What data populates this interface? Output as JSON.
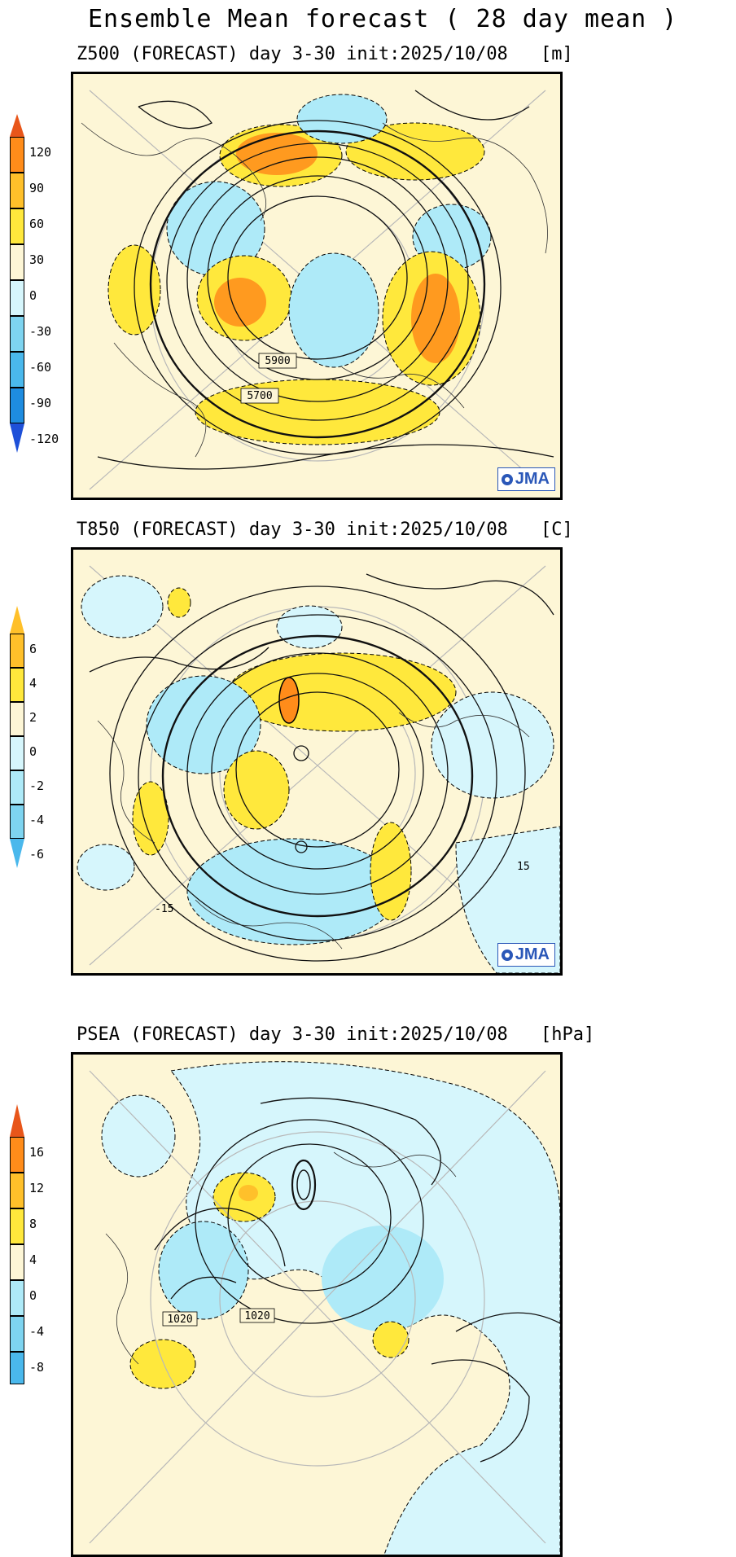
{
  "title": "Ensemble Mean forecast ( 28 day mean )",
  "colors": {
    "background": "#fdf6d6",
    "positive": [
      "#fff6a0",
      "#ffe83c",
      "#ffc02a",
      "#ff8c1a",
      "#e8561a"
    ],
    "negative": [
      "#d6f6fc",
      "#aeeaf8",
      "#7ed4f0",
      "#4ab8ec",
      "#1e8ce0",
      "#1e50d8"
    ]
  },
  "panels": [
    {
      "label": "Z500 (FORECAST) day 3-30 init:2025/10/08",
      "unit": "[m]",
      "contour_labels": [
        "5700",
        "5900"
      ],
      "watermark": "JMA",
      "colorbar": {
        "ticks": [
          "120",
          "90",
          "60",
          "30",
          "0",
          "-30",
          "-60",
          "-90",
          "-120"
        ]
      }
    },
    {
      "label": "T850 (FORECAST) day 3-30 init:2025/10/08",
      "unit": "[C]",
      "contour_labels": [
        "15",
        "-15"
      ],
      "watermark": "JMA",
      "colorbar": {
        "ticks": [
          "6",
          "4",
          "2",
          "0",
          "-2",
          "-4",
          "-6"
        ]
      }
    },
    {
      "label": "PSEA (FORECAST) day 3-30 init:2025/10/08",
      "unit": "[hPa]",
      "contour_labels": [
        "1020",
        "1020"
      ],
      "watermark": "",
      "colorbar": {
        "ticks": [
          "16",
          "12",
          "8",
          "4",
          "0",
          "-4",
          "-8"
        ]
      }
    }
  ]
}
